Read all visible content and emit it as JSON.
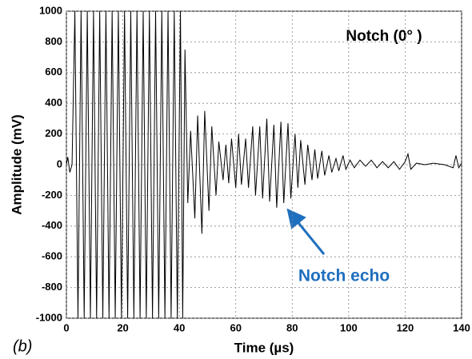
{
  "chart_data": {
    "type": "line",
    "xlabel": "Time (µs)",
    "ylabel": "Amplitude (mV)",
    "annotations": {
      "title": "Notch (0° )",
      "echo": "Notch echo",
      "panel": "(b)"
    },
    "xlim": [
      0,
      140
    ],
    "xticks": [
      0,
      20,
      40,
      60,
      80,
      100,
      120,
      140
    ],
    "ylim": [
      -1000,
      1000
    ],
    "yticks": [
      -1000,
      -800,
      -600,
      -400,
      -200,
      0,
      200,
      400,
      600,
      800,
      1000
    ],
    "grid": true,
    "series": [
      {
        "color": "#000000",
        "x": [
          0,
          0.5,
          1.2,
          2,
          3.0,
          4.1,
          5.2,
          6.3,
          7.4,
          8.5,
          9.6,
          10.7,
          11.8,
          12.9,
          14.0,
          15.1,
          16.2,
          17.3,
          18.4,
          19.5,
          20.6,
          21.7,
          22.8,
          23.9,
          25.0,
          26.1,
          27.2,
          28.3,
          29.4,
          30.5,
          31.6,
          32.7,
          33.8,
          34.9,
          36.0,
          37.1,
          38.2,
          39.3,
          40.4,
          41.2,
          42,
          43,
          44,
          45.5,
          46.5,
          48,
          49,
          50.5,
          51.5,
          53,
          54,
          55.5,
          56.5,
          57.5,
          58.5,
          60,
          61,
          62,
          63.5,
          64.5,
          66,
          67,
          68.5,
          69.5,
          71,
          72,
          73.5,
          74.5,
          76,
          77,
          78.5,
          79.5,
          81,
          82,
          83,
          84.5,
          85.5,
          87,
          88,
          89,
          90.5,
          91.5,
          93,
          94,
          95.5,
          96.5,
          98,
          99,
          100.5,
          102,
          104,
          106,
          108,
          110,
          112,
          114,
          116,
          118,
          120,
          121,
          122,
          124,
          127,
          130,
          134,
          137,
          138,
          139,
          140
        ],
        "values": [
          0,
          50,
          -50,
          0,
          1000,
          -1000,
          1000,
          -1000,
          1000,
          -1000,
          1000,
          -1000,
          1000,
          -1000,
          1000,
          -1000,
          1000,
          -1000,
          1000,
          -1000,
          1000,
          -1000,
          1000,
          -1000,
          1000,
          -1000,
          1000,
          -1000,
          1000,
          -1000,
          1000,
          -1000,
          1000,
          -1000,
          1000,
          -1000,
          1000,
          -1000,
          1000,
          -1000,
          750,
          -250,
          220,
          -350,
          320,
          -450,
          350,
          -300,
          250,
          -200,
          150,
          -100,
          130,
          -120,
          170,
          -150,
          200,
          -130,
          170,
          -150,
          250,
          -200,
          250,
          -220,
          300,
          -240,
          260,
          -280,
          280,
          -250,
          270,
          -220,
          200,
          -150,
          160,
          -130,
          130,
          -100,
          100,
          -90,
          90,
          -70,
          60,
          -50,
          40,
          -40,
          60,
          -30,
          30,
          -20,
          30,
          -10,
          30,
          -20,
          20,
          -20,
          20,
          -30,
          20,
          70,
          -30,
          10,
          0,
          10,
          0,
          -20,
          60,
          -20,
          10
        ]
      }
    ]
  }
}
